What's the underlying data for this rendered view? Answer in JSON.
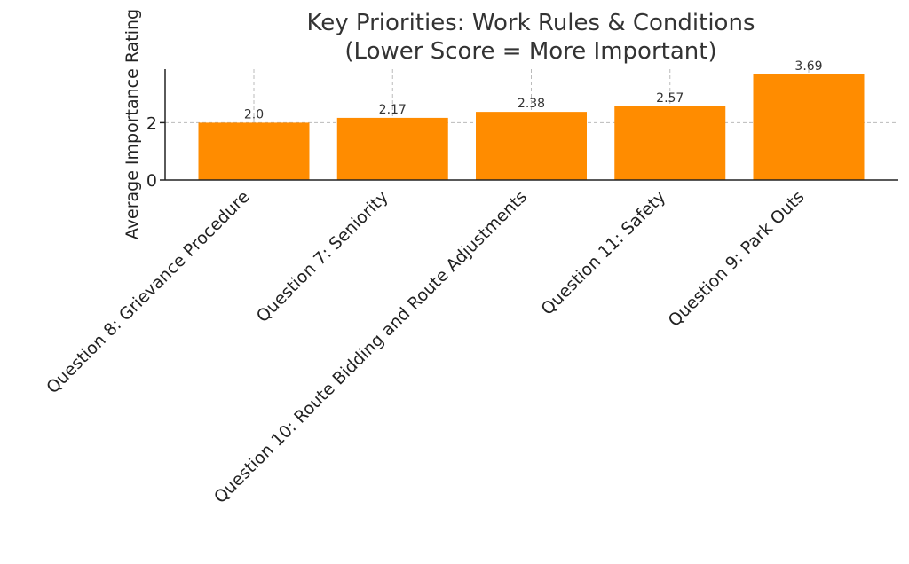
{
  "chart_data": {
    "type": "bar",
    "title_line1": "Key Priorities: Work Rules & Conditions",
    "title_line2": "(Lower Score = More Important)",
    "xlabel": "",
    "ylabel": "Average Importance Rating",
    "categories": [
      "Question 8: Grievance Procedure",
      "Question 7:  Seniority",
      "Question 10: Route Bidding and Route Adjustments",
      "Question 11: Safety",
      "Question 9: Park Outs"
    ],
    "values": [
      2.0,
      2.17,
      2.38,
      2.57,
      3.69
    ],
    "value_labels": [
      "2.0",
      "2.17",
      "2.38",
      "2.57",
      "3.69"
    ],
    "ylim": [
      0,
      3.87
    ],
    "yticks": [
      0,
      2
    ],
    "ytick_labels": [
      "0",
      "2"
    ],
    "grid": true,
    "bar_color": "#ff8c00"
  }
}
